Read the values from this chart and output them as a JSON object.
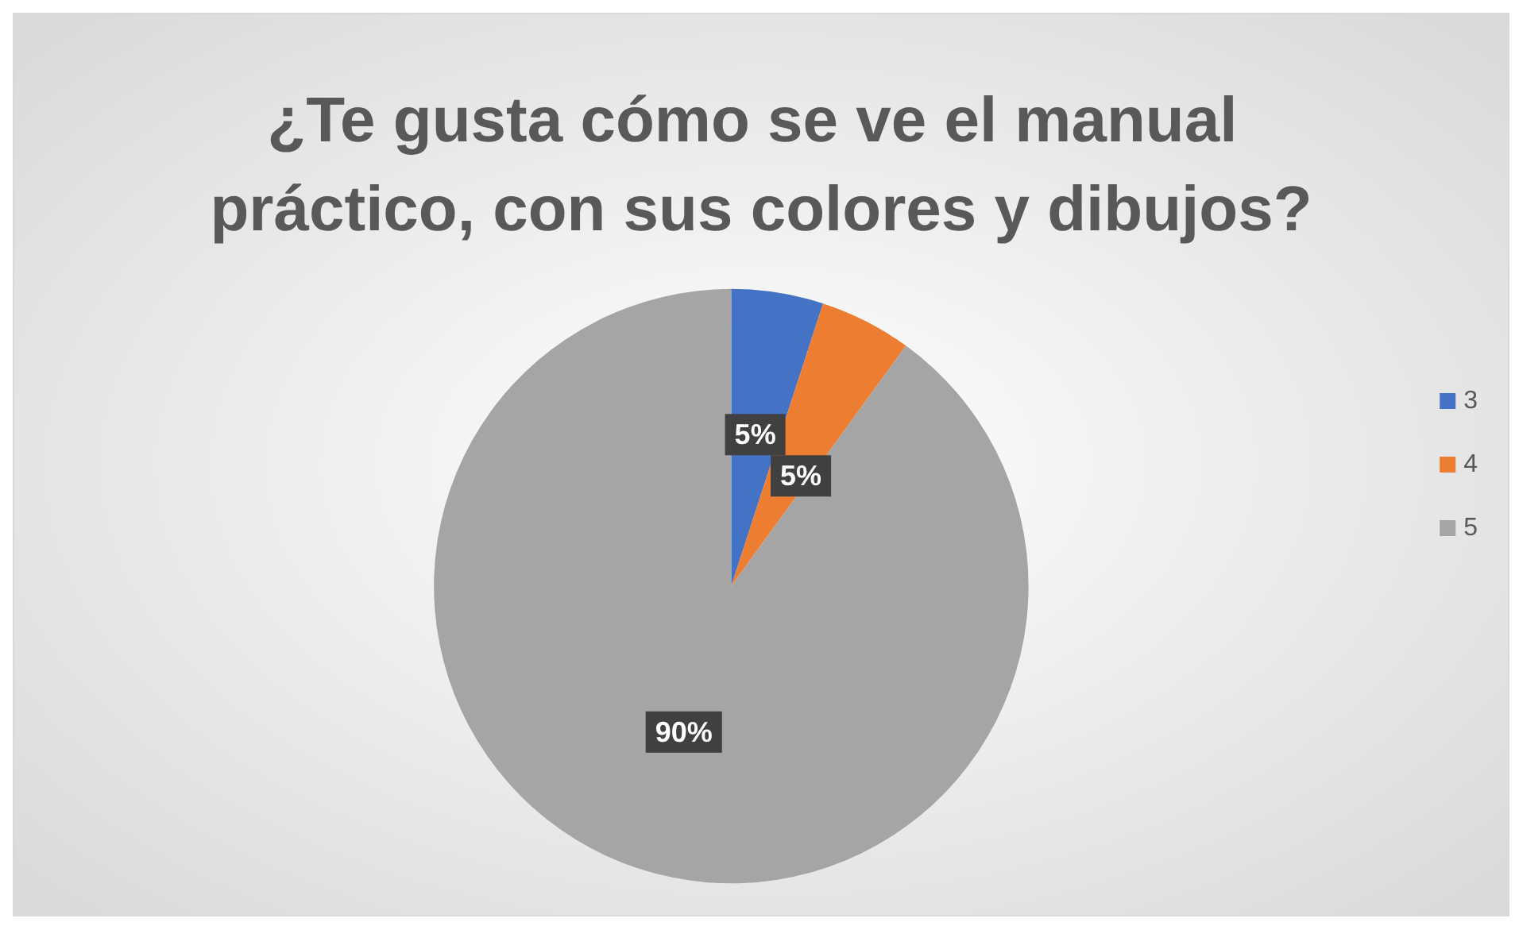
{
  "chart_data": {
    "type": "pie",
    "title": "¿Te gusta cómo se ve el manual práctico, con sus colores y dibujos?",
    "categories": [
      "3",
      "4",
      "5"
    ],
    "values": [
      5,
      5,
      90
    ],
    "colors": [
      "#4472c4",
      "#ed7d31",
      "#a5a5a5"
    ],
    "value_labels": [
      "5%",
      "5%",
      "90%"
    ],
    "legend": "right"
  }
}
